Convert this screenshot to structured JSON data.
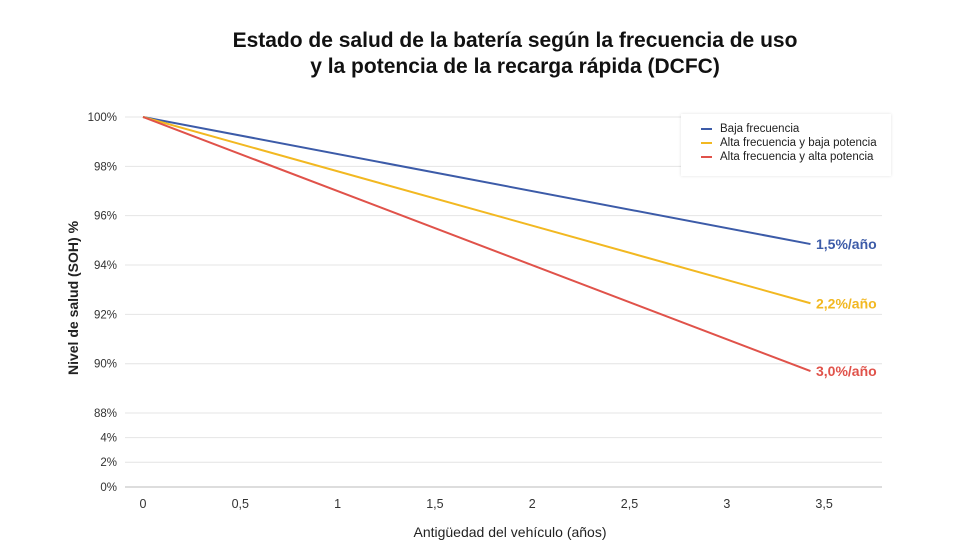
{
  "chart_data": {
    "type": "line",
    "title_line1": "Estado de salud de la batería según la frecuencia de uso",
    "title_line2": "y la potencia de la recarga rápida (DCFC)",
    "xlabel": "Antigüedad del vehículo (años)",
    "ylabel": "Nivel de salud (SOH) %",
    "xlim": [
      0,
      3.5
    ],
    "x_ticks": [
      "0",
      "0,5",
      "1",
      "1,5",
      "2",
      "2,5",
      "3",
      "3,5"
    ],
    "y_ticks": [
      {
        "value": 100,
        "label": "100%"
      },
      {
        "value": 98,
        "label": "98%"
      },
      {
        "value": 96,
        "label": "96%"
      },
      {
        "value": 94,
        "label": "94%"
      },
      {
        "value": 92,
        "label": "92%"
      },
      {
        "value": 90,
        "label": "90%"
      },
      {
        "value": 88,
        "label": "88%"
      },
      {
        "value": 4,
        "label": "4%"
      },
      {
        "value": 2,
        "label": "2%"
      },
      {
        "value": 0,
        "label": "0%"
      }
    ],
    "y_axis_break": "88% to 4%",
    "grid": true,
    "legend_position": "top-right",
    "series": [
      {
        "name": "Baja frecuencia",
        "color": "#3c5ba8",
        "x": [
          0,
          3.43
        ],
        "y": [
          100,
          94.85
        ],
        "label": "1,5%/año"
      },
      {
        "name": "Alta frecuencia y baja potencia",
        "color": "#f2b821",
        "x": [
          0,
          3.43
        ],
        "y": [
          100,
          92.45
        ],
        "label": "2,2%/año"
      },
      {
        "name": "Alta frecuencia y alta potencia",
        "color": "#e0524a",
        "x": [
          0,
          3.43
        ],
        "y": [
          100,
          89.7
        ],
        "label": "3,0%/año"
      }
    ]
  }
}
